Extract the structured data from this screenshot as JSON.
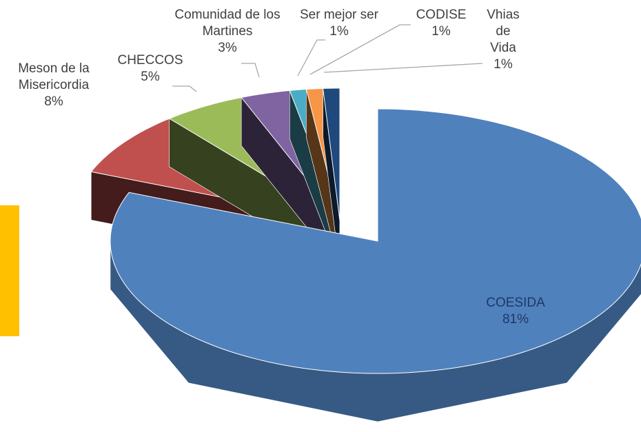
{
  "chart_data": {
    "type": "pie3d",
    "categories": [
      "COESIDA",
      "Meson de la Misericordia",
      "CHECCOS",
      "Comunidad de los Martines",
      "Ser mejor ser",
      "CODISE",
      "Vhias de Vida"
    ],
    "values": [
      81,
      8,
      5,
      3,
      1,
      1,
      1
    ],
    "value_labels": [
      "81%",
      "8%",
      "5%",
      "3%",
      "1%",
      "1%",
      "1%"
    ],
    "colors": [
      "#4f81bd",
      "#c0504d",
      "#9bbb59",
      "#8064a2",
      "#4bacc6",
      "#f79646",
      "#1f497d"
    ]
  }
}
